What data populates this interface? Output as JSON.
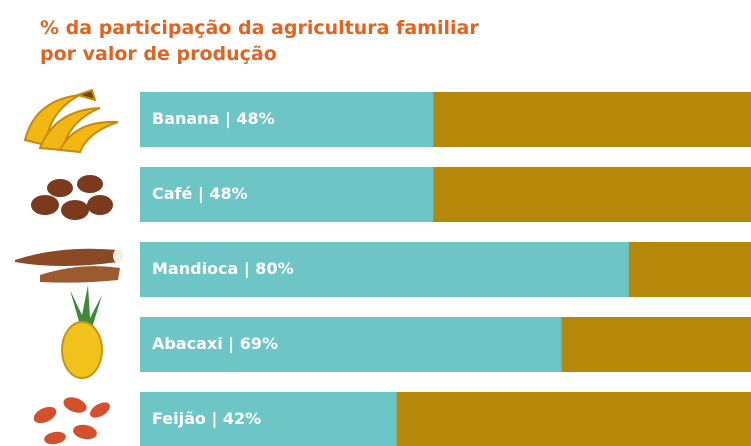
{
  "chart_data": {
    "type": "bar",
    "orientation": "horizontal",
    "title_lines": [
      "% da participação da agricultura familiar",
      "por valor de produção"
    ],
    "values": [
      48,
      48,
      80,
      69,
      42
    ],
    "value_labels": [
      "Banana | 48%",
      "Café | 48%",
      "Mandioca | 80%",
      "Abacaxi | 69%",
      "Feijão | 42%"
    ],
    "color": "#6dc6c5",
    "remainder_color": "#b5880a",
    "xlim": [
      0,
      100
    ]
  }
}
